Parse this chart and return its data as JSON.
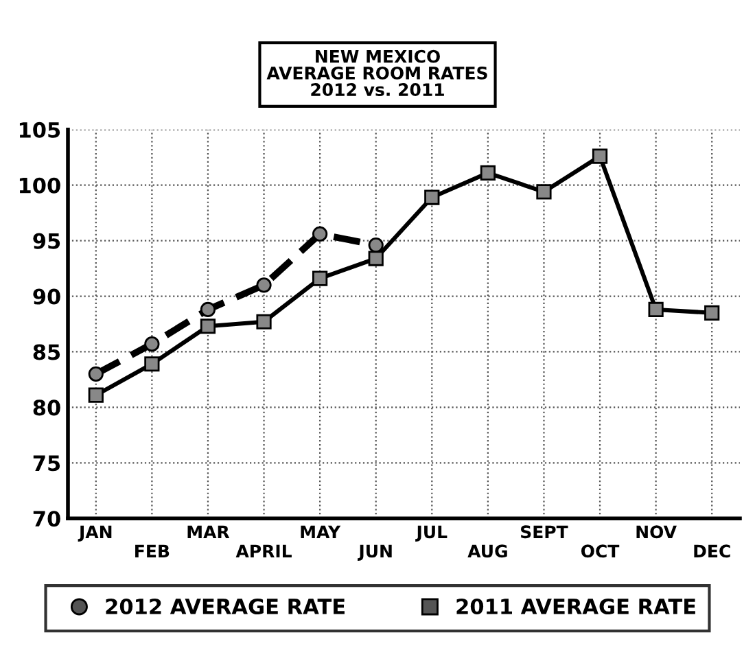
{
  "chart_data": {
    "type": "line",
    "title": "NEW MEXICO\nAVERAGE ROOM RATES\n2012 vs. 2011",
    "categories": [
      "JAN",
      "FEB",
      "MAR",
      "APRIL",
      "MAY",
      "JUN",
      "JUL",
      "AUG",
      "SEPT",
      "OCT",
      "NOV",
      "DEC"
    ],
    "series": [
      {
        "name": "2012 AVERAGE RATE",
        "color": "#000000",
        "marker": "circle",
        "line_style": "dashed",
        "values": [
          83.0,
          85.7,
          88.8,
          91.0,
          95.6,
          94.6,
          null,
          null,
          null,
          null,
          null,
          null
        ]
      },
      {
        "name": "2011 AVERAGE RATE",
        "color": "#000000",
        "marker": "square",
        "line_style": "solid",
        "values": [
          81.1,
          83.9,
          87.3,
          87.7,
          91.6,
          93.4,
          98.9,
          101.1,
          99.4,
          102.6,
          88.8,
          88.5
        ]
      }
    ],
    "ylim": [
      70,
      105
    ],
    "yticks": [
      70,
      75,
      80,
      85,
      90,
      95,
      100,
      105
    ],
    "grid": true,
    "legend": "bottom"
  }
}
